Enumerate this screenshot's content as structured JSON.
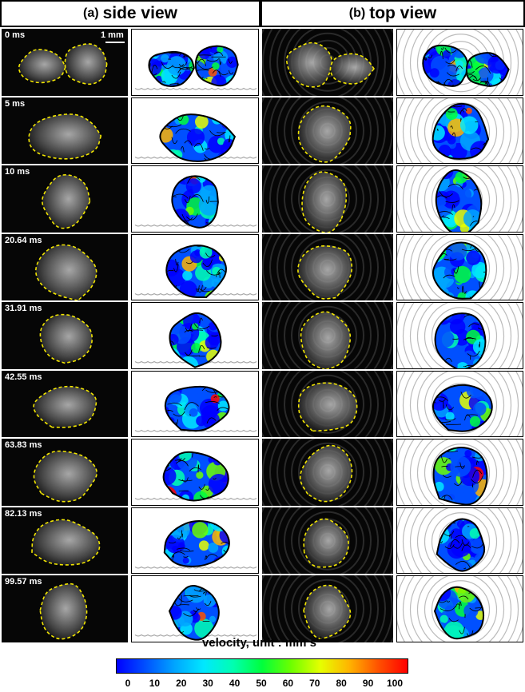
{
  "panels": {
    "side": {
      "letter": "(a)",
      "title": "side view"
    },
    "top": {
      "letter": "(b)",
      "title": "top view"
    }
  },
  "scale_bar": "1 mm",
  "timestamps": [
    "0 ms",
    "5 ms",
    "10 ms",
    "20.64 ms",
    "31.91 ms",
    "42.55 ms",
    "63.83 ms",
    "82.13 ms",
    "99.57 ms"
  ],
  "colorbar": {
    "label": "velocity, unit : mm s",
    "label_superscript": "-1",
    "ticks": [
      "0",
      "10",
      "20",
      "30",
      "40",
      "50",
      "60",
      "70",
      "80",
      "90",
      "100"
    ],
    "colors": [
      "#0000ff",
      "#0050ff",
      "#00a6ff",
      "#00e8ff",
      "#00ffb0",
      "#00ff3c",
      "#6cff00",
      "#e6ff00",
      "#ffb400",
      "#ff5000",
      "#ff0000"
    ]
  }
}
